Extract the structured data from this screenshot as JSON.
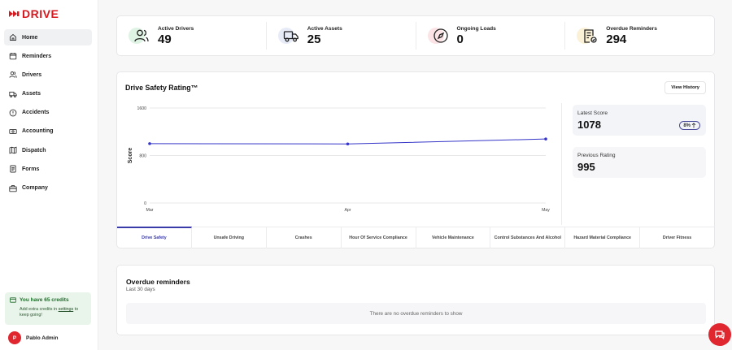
{
  "brand": {
    "name": "DRIVE",
    "color": "#d7191f"
  },
  "sidebar": {
    "items": [
      {
        "label": "Home",
        "icon": "home-icon",
        "active": true
      },
      {
        "label": "Reminders",
        "icon": "calendar-icon"
      },
      {
        "label": "Drivers",
        "icon": "users-icon"
      },
      {
        "label": "Assets",
        "icon": "truck-icon"
      },
      {
        "label": "Accidents",
        "icon": "alert-circle-icon"
      },
      {
        "label": "Accounting",
        "icon": "cash-icon"
      },
      {
        "label": "Dispatch",
        "icon": "map-icon"
      },
      {
        "label": "Forms",
        "icon": "document-icon"
      },
      {
        "label": "Company",
        "icon": "building-icon"
      }
    ],
    "credits": {
      "title": "You have 65 credits",
      "text_before": "Add extra credits in ",
      "link": "settings",
      "text_after": " to keep going!"
    },
    "user": {
      "initial": "P",
      "name": "Pablo Admin"
    }
  },
  "stats": [
    {
      "label": "Active Drivers",
      "value": "49",
      "icon": "users-icon",
      "accent": "#dff3e4"
    },
    {
      "label": "Active Assets",
      "value": "25",
      "icon": "truck-icon",
      "accent": "#e6ebf7"
    },
    {
      "label": "Ongoing Loads",
      "value": "0",
      "icon": "compass-icon",
      "accent": "#fbe3e6"
    },
    {
      "label": "Overdue Reminders",
      "value": "294",
      "icon": "document-check-icon",
      "accent": "#fbf1d6"
    }
  ],
  "rating": {
    "title": "Drive Safety Rating™",
    "view_history": "View History",
    "latest_label": "Latest Score",
    "latest_value": "1078",
    "change": "8%",
    "previous_label": "Previous Rating",
    "previous_value": "995",
    "tabs": [
      "Drive Safety",
      "Unsafe Driving",
      "Crashes",
      "Hour Of Service Compliance",
      "Vehicle Maintenance",
      "Control Substances And Alcohol",
      "Hazard Material Compliance",
      "Driver Fitness"
    ]
  },
  "chart_data": {
    "type": "line",
    "x": [
      "Mar",
      "Apr",
      "May"
    ],
    "series": [
      {
        "values": [
          1000,
          995,
          1078
        ]
      }
    ],
    "ylabel": "Score",
    "ylim": [
      0,
      1600
    ],
    "yticks": [
      "1600",
      "800",
      "0"
    ],
    "grid": true,
    "line_color": "#3434c8"
  },
  "overdue": {
    "title": "Overdue reminders",
    "subtitle": "Last 30 days",
    "empty": "There are no overdue reminders to show"
  }
}
